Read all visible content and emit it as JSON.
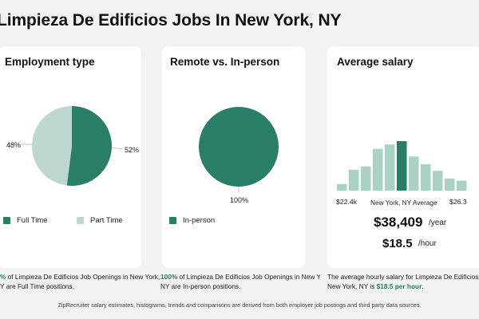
{
  "page_title": "Limpieza De Edificios Jobs In New York, NY",
  "colors": {
    "primary": "#2a7d66",
    "light": "#a9d1c6",
    "light2": "#bcd7cf",
    "bg": "#f1f2f2"
  },
  "employment": {
    "title": "Employment type",
    "slices": [
      {
        "name": "Full Time",
        "percent": 52,
        "label": "52%",
        "color": "#2a7d66"
      },
      {
        "name": "Part Time",
        "percent": 48,
        "label": "48%",
        "color": "#bcd7cf"
      }
    ],
    "caption_pct": "%",
    "caption_rest1": " of Limpieza De Edificios Job Openings in New York,",
    "caption_line2": "Y are Full Time positions."
  },
  "remote": {
    "title": "Remote vs. In-person",
    "slices": [
      {
        "name": "In-person",
        "percent": 100,
        "label": "100%",
        "color": "#2a7d66"
      }
    ],
    "caption_pct": "100%",
    "caption_rest1": " of Limpieza De Edificios Job Openings in New York,",
    "caption_line2": "NY are In-person positions."
  },
  "salary": {
    "title": "Average salary",
    "min_label": "$22.4k",
    "center_label": "New York, NY Average",
    "max_label": "$26.3",
    "annual": "$38,409",
    "annual_unit": "/year",
    "hourly": "$18.5",
    "hourly_unit": "/hour",
    "caption_line1": "The average hourly salary for Limpieza De Edificios Jobs i",
    "caption_line2_prefix": "New York, NY is ",
    "caption_line2_em": "$18.5 per hour",
    "caption_line2_suffix": "."
  },
  "chart_data": [
    {
      "type": "pie",
      "title": "Employment type",
      "categories": [
        "Full Time",
        "Part Time"
      ],
      "values": [
        52,
        48
      ]
    },
    {
      "type": "pie",
      "title": "Remote vs. In-person",
      "categories": [
        "In-person"
      ],
      "values": [
        100
      ]
    },
    {
      "type": "bar",
      "title": "Average salary",
      "xlabel": "",
      "ylabel": "",
      "categories": [
        "1",
        "2",
        "3",
        "4",
        "5",
        "6",
        "7",
        "8",
        "9",
        "10",
        "11"
      ],
      "values": [
        6,
        19,
        22,
        38,
        42,
        45,
        31,
        24,
        18,
        11,
        9
      ],
      "highlight_index": 5
    }
  ],
  "footnote": "ZipRecruiter salary estimates, histograms, trends and comparisons are derived from both employer job postings and third party data sources."
}
